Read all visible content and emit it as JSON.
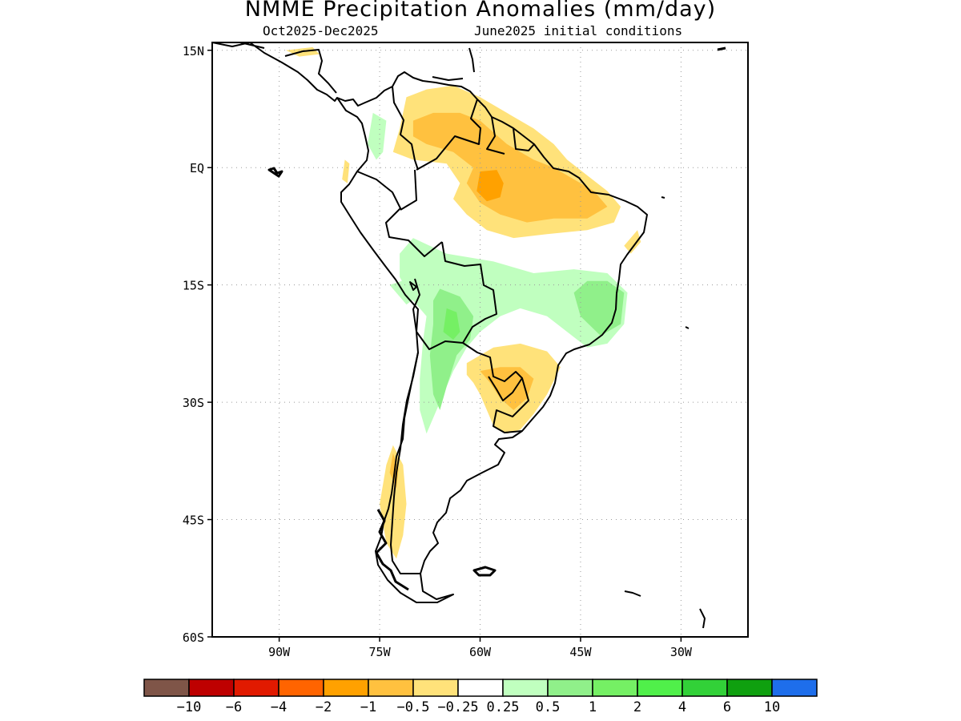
{
  "title": "NMME Precipitation Anomalies (mm/day)",
  "subtitle_period": "Oct2025-Dec2025",
  "subtitle_ic": "June2025 initial conditions",
  "map": {
    "region": "South America",
    "lon_range": [
      -100,
      -20
    ],
    "lat_range": [
      -60,
      16
    ],
    "grid": "dotted",
    "lat_ticks": [
      {
        "value": 15,
        "label": "15N"
      },
      {
        "value": 0,
        "label": "EQ"
      },
      {
        "value": -15,
        "label": "15S"
      },
      {
        "value": -30,
        "label": "30S"
      },
      {
        "value": -45,
        "label": "45S"
      },
      {
        "value": -60,
        "label": "60S"
      }
    ],
    "lon_ticks": [
      {
        "value": -90,
        "label": "90W"
      },
      {
        "value": -75,
        "label": "75W"
      },
      {
        "value": -60,
        "label": "60W"
      },
      {
        "value": -45,
        "label": "45W"
      },
      {
        "value": -30,
        "label": "30W"
      }
    ],
    "anomaly_regions": [
      {
        "name": "northern-south-america-dry",
        "category": "-0.5 to -0.25",
        "color": "#ffe27a",
        "lonlat": [
          [
            -71,
            9
          ],
          [
            -68,
            10
          ],
          [
            -64,
            10.5
          ],
          [
            -60,
            9
          ],
          [
            -56,
            7
          ],
          [
            -52,
            5
          ],
          [
            -49,
            3
          ],
          [
            -47,
            1
          ],
          [
            -44,
            -1
          ],
          [
            -41,
            -3
          ],
          [
            -39,
            -5
          ],
          [
            -40,
            -7
          ],
          [
            -44,
            -8
          ],
          [
            -50,
            -8.5
          ],
          [
            -55,
            -9
          ],
          [
            -59,
            -8
          ],
          [
            -62,
            -6
          ],
          [
            -64,
            -4
          ],
          [
            -63,
            -2
          ],
          [
            -65,
            0.5
          ],
          [
            -70,
            1
          ],
          [
            -73,
            2
          ],
          [
            -72,
            5
          ]
        ]
      },
      {
        "name": "northern-south-america-moderate-dry",
        "category": "-1 to -0.5",
        "color": "#ffc13f",
        "lonlat": [
          [
            -70,
            6
          ],
          [
            -67,
            7
          ],
          [
            -63,
            7
          ],
          [
            -60,
            6
          ],
          [
            -56,
            3
          ],
          [
            -52,
            1
          ],
          [
            -49,
            0
          ],
          [
            -46,
            -1.5
          ],
          [
            -43,
            -3
          ],
          [
            -41,
            -5
          ],
          [
            -44,
            -6.5
          ],
          [
            -49,
            -6.5
          ],
          [
            -53,
            -7
          ],
          [
            -57,
            -6
          ],
          [
            -60,
            -4.5
          ],
          [
            -62,
            -2
          ],
          [
            -61,
            0
          ],
          [
            -64,
            2
          ],
          [
            -68,
            3
          ],
          [
            -70,
            4
          ]
        ]
      },
      {
        "name": "amazon-core-dry",
        "category": "-2 to -1",
        "color": "#ffa100",
        "lonlat": [
          [
            -60,
            -0.5
          ],
          [
            -57.5,
            -0.3
          ],
          [
            -56.5,
            -2
          ],
          [
            -57,
            -3.8
          ],
          [
            -59,
            -4.3
          ],
          [
            -60.5,
            -3
          ]
        ]
      },
      {
        "name": "northeast-brazil-coast-dry",
        "category": "-0.5 to -0.25",
        "color": "#ffe27a",
        "lonlat": [
          [
            -36.5,
            -8
          ],
          [
            -36,
            -9.5
          ],
          [
            -37.5,
            -11
          ],
          [
            -38.5,
            -10
          ]
        ]
      },
      {
        "name": "ecuador-coast-dry",
        "category": "-0.5 to -0.25",
        "color": "#ffe27a",
        "lonlat": [
          [
            -80.2,
            1
          ],
          [
            -79.5,
            0.5
          ],
          [
            -79.8,
            -2
          ],
          [
            -80.6,
            -1.5
          ]
        ]
      },
      {
        "name": "central-america-dry",
        "category": "-0.5 to -0.25",
        "color": "#ffe27a",
        "lonlat": [
          [
            -89,
            15
          ],
          [
            -85,
            15.4
          ],
          [
            -84,
            14.5
          ],
          [
            -87,
            14.2
          ]
        ]
      },
      {
        "name": "southeast-south-america-dry",
        "category": "-0.5 to -0.25",
        "color": "#ffe27a",
        "lonlat": [
          [
            -62,
            -25
          ],
          [
            -58,
            -23
          ],
          [
            -54,
            -22.5
          ],
          [
            -50,
            -23.5
          ],
          [
            -48,
            -25.5
          ],
          [
            -50,
            -29
          ],
          [
            -52,
            -31.5
          ],
          [
            -54,
            -33.5
          ],
          [
            -56,
            -34
          ],
          [
            -58,
            -33
          ],
          [
            -59,
            -31
          ],
          [
            -60,
            -29
          ],
          [
            -61,
            -27.5
          ],
          [
            -62,
            -26.5
          ]
        ]
      },
      {
        "name": "southeast-south-america-moderate-dry",
        "category": "-1 to -0.5",
        "color": "#ffc13f",
        "lonlat": [
          [
            -60,
            -26
          ],
          [
            -57,
            -25.5
          ],
          [
            -54,
            -25.5
          ],
          [
            -52,
            -27
          ],
          [
            -53,
            -29.5
          ],
          [
            -55,
            -31
          ],
          [
            -57,
            -29.5
          ],
          [
            -58.5,
            -27.5
          ]
        ]
      },
      {
        "name": "southern-chile-dry",
        "category": "-0.5 to -0.25",
        "color": "#ffe27a",
        "lonlat": [
          [
            -73,
            -35.5
          ],
          [
            -71.5,
            -38
          ],
          [
            -71,
            -43
          ],
          [
            -71.5,
            -47
          ],
          [
            -72.5,
            -50
          ],
          [
            -74,
            -48
          ],
          [
            -75,
            -43
          ],
          [
            -74,
            -38
          ]
        ]
      },
      {
        "name": "southern-chile-moderate-dry",
        "category": "-1 to -0.5",
        "color": "#ffc13f",
        "lonlat": [
          [
            -73,
            -36.5
          ],
          [
            -72.2,
            -38.5
          ],
          [
            -72.5,
            -41
          ],
          [
            -73.5,
            -39
          ]
        ]
      },
      {
        "name": "andes-colombia-wet",
        "category": "0.25 to 0.5",
        "color": "#c0ffbf",
        "lonlat": [
          [
            -76,
            7
          ],
          [
            -74,
            6
          ],
          [
            -74.5,
            2
          ],
          [
            -75.5,
            1
          ],
          [
            -76.8,
            3
          ]
        ]
      },
      {
        "name": "central-brazil-wet",
        "category": "0.25 to 0.5",
        "color": "#c0ffbf",
        "lonlat": [
          [
            -70,
            -9
          ],
          [
            -65,
            -11
          ],
          [
            -58,
            -12
          ],
          [
            -52,
            -13.5
          ],
          [
            -46,
            -13
          ],
          [
            -41,
            -13.5
          ],
          [
            -38,
            -16
          ],
          [
            -38.5,
            -20
          ],
          [
            -41,
            -22.5
          ],
          [
            -44,
            -23
          ],
          [
            -47,
            -21
          ],
          [
            -50,
            -19
          ],
          [
            -54,
            -18
          ],
          [
            -57,
            -19
          ],
          [
            -60,
            -21
          ],
          [
            -62,
            -23
          ],
          [
            -64,
            -26
          ],
          [
            -66,
            -30
          ],
          [
            -68,
            -34
          ],
          [
            -69,
            -31
          ],
          [
            -69,
            -27
          ],
          [
            -68.5,
            -22
          ],
          [
            -68,
            -19
          ],
          [
            -70,
            -17
          ],
          [
            -72,
            -14
          ],
          [
            -72,
            -11
          ]
        ]
      },
      {
        "name": "eastern-brazil-wet",
        "category": "0.5 to 1",
        "color": "#90f08a",
        "lonlat": [
          [
            -44,
            -14.5
          ],
          [
            -41,
            -14.5
          ],
          [
            -38.5,
            -16
          ],
          [
            -39,
            -20
          ],
          [
            -42,
            -21.5
          ],
          [
            -45,
            -19
          ],
          [
            -46,
            -16
          ]
        ]
      },
      {
        "name": "bolivia-argentina-wet",
        "category": "0.5 to 1",
        "color": "#90f08a",
        "lonlat": [
          [
            -66,
            -15.5
          ],
          [
            -63,
            -16.5
          ],
          [
            -61,
            -19
          ],
          [
            -61.5,
            -22
          ],
          [
            -63.5,
            -24
          ],
          [
            -65,
            -28
          ],
          [
            -66,
            -31
          ],
          [
            -67,
            -29
          ],
          [
            -67.5,
            -24
          ],
          [
            -67,
            -20
          ],
          [
            -67,
            -17
          ]
        ]
      },
      {
        "name": "bolivia-core-wet",
        "category": "1 to 2",
        "color": "#75f064",
        "lonlat": [
          [
            -65,
            -18
          ],
          [
            -63.5,
            -18.5
          ],
          [
            -63,
            -21
          ],
          [
            -64,
            -22
          ],
          [
            -65.5,
            -21
          ]
        ]
      },
      {
        "name": "southern-peru-wet",
        "category": "0.25 to 0.5",
        "color": "#c0ffbf",
        "lonlat": [
          [
            -73.5,
            -15
          ],
          [
            -70,
            -14
          ],
          [
            -68.5,
            -16
          ],
          [
            -71,
            -17.5
          ]
        ]
      }
    ],
    "islands": [
      "galapagos",
      "falklands",
      "south-georgia",
      "fernando-de-noronha",
      "trindade"
    ]
  },
  "colorbar": {
    "colors": [
      "#7f5548",
      "#be0000",
      "#e11a00",
      "#ff6400",
      "#ffa100",
      "#ffc13f",
      "#ffe27a",
      "#ffffff",
      "#c0ffbf",
      "#90f08a",
      "#75f064",
      "#50f04a",
      "#32d138",
      "#0fa00f",
      "#1e6eeb"
    ],
    "labels": [
      "-10",
      "-6",
      "-4",
      "-2",
      "-1",
      "-0.5",
      "-0.25",
      "0.25",
      "0.5",
      "1",
      "2",
      "4",
      "6",
      "10"
    ]
  }
}
